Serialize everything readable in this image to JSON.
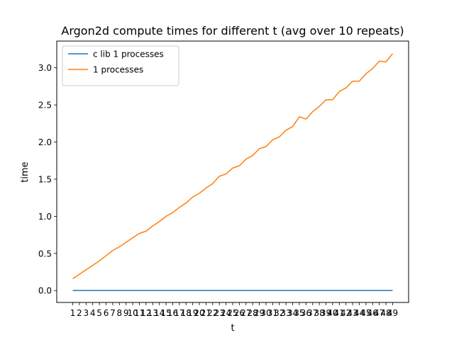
{
  "chart_data": {
    "type": "line",
    "title": "Argon2d compute times for different t (avg over 10 repeats)",
    "xlabel": "t",
    "ylabel": "time",
    "x": [
      1,
      2,
      3,
      4,
      5,
      6,
      7,
      8,
      9,
      10,
      11,
      12,
      13,
      14,
      15,
      16,
      17,
      18,
      19,
      20,
      21,
      22,
      23,
      24,
      25,
      26,
      27,
      28,
      29,
      30,
      31,
      32,
      33,
      34,
      35,
      36,
      37,
      38,
      39,
      40,
      41,
      42,
      43,
      44,
      45,
      46,
      47,
      48,
      49
    ],
    "xticklabels": [
      "1",
      "2",
      "3",
      "4",
      "5",
      "6",
      "7",
      "8",
      "9",
      "10",
      "11",
      "12",
      "13",
      "14",
      "15",
      "16",
      "17",
      "18",
      "19",
      "20",
      "21",
      "22",
      "23",
      "24",
      "25",
      "26",
      "27",
      "28",
      "29",
      "30",
      "31",
      "32",
      "33",
      "34",
      "35",
      "36",
      "37",
      "38",
      "39",
      "40",
      "41",
      "42",
      "43",
      "44",
      "45",
      "46",
      "47",
      "48",
      "49"
    ],
    "yticks": [
      0.0,
      0.5,
      1.0,
      1.5,
      2.0,
      2.5,
      3.0
    ],
    "yticklabels": [
      "0.0",
      "0.5",
      "1.0",
      "1.5",
      "2.0",
      "2.5",
      "3.0"
    ],
    "ylim": [
      -0.16,
      3.36
    ],
    "xlim": [
      -1.4,
      51.4
    ],
    "grid": false,
    "legend_position": "upper-left",
    "series": [
      {
        "name": "c lib 1 processes",
        "color": "#1f77b4",
        "values": [
          0.001,
          0.001,
          0.001,
          0.001,
          0.001,
          0.001,
          0.001,
          0.001,
          0.001,
          0.001,
          0.001,
          0.001,
          0.001,
          0.001,
          0.001,
          0.001,
          0.001,
          0.001,
          0.001,
          0.001,
          0.001,
          0.001,
          0.001,
          0.001,
          0.001,
          0.001,
          0.001,
          0.001,
          0.001,
          0.001,
          0.001,
          0.001,
          0.001,
          0.001,
          0.001,
          0.001,
          0.001,
          0.001,
          0.001,
          0.001,
          0.001,
          0.001,
          0.001,
          0.001,
          0.001,
          0.001,
          0.001,
          0.001,
          0.001
        ]
      },
      {
        "name": "1 processes",
        "color": "#ff7f0e",
        "values": [
          0.16,
          0.22,
          0.28,
          0.34,
          0.4,
          0.47,
          0.54,
          0.59,
          0.65,
          0.71,
          0.77,
          0.8,
          0.87,
          0.93,
          1.0,
          1.05,
          1.12,
          1.18,
          1.26,
          1.31,
          1.38,
          1.44,
          1.54,
          1.57,
          1.65,
          1.68,
          1.77,
          1.82,
          1.91,
          1.94,
          2.03,
          2.07,
          2.16,
          2.21,
          2.34,
          2.31,
          2.41,
          2.48,
          2.57,
          2.57,
          2.68,
          2.73,
          2.82,
          2.82,
          2.92,
          2.99,
          3.09,
          3.08,
          3.19
        ]
      }
    ]
  }
}
